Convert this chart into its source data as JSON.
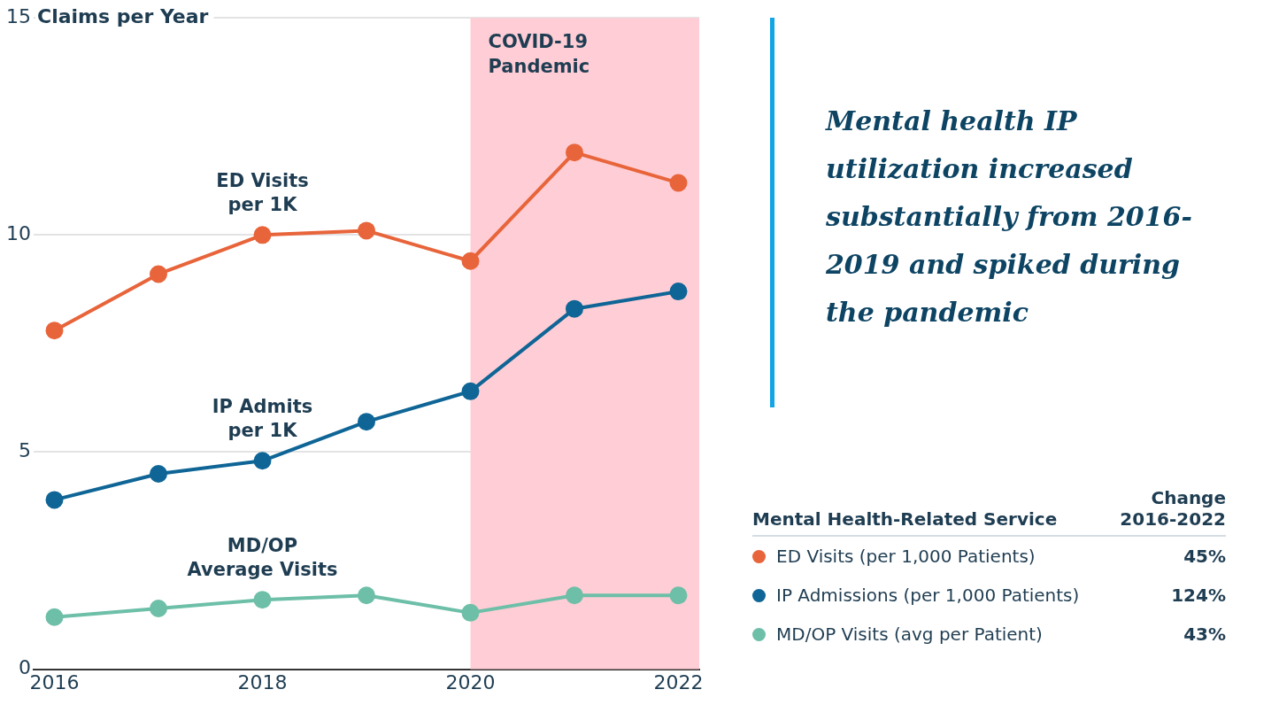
{
  "chart_data": {
    "type": "line",
    "ylabel": "Claims per Year",
    "subtitle": "Mental health IP utilization increased substantially from 2016-2019 and spiked during the pandemic",
    "x": [
      2016,
      2017,
      2018,
      2019,
      2020,
      2021,
      2022
    ],
    "series": [
      {
        "name": "ED Visits\nper 1K",
        "color": "#e8643a",
        "values": [
          7.8,
          9.1,
          10.0,
          10.1,
          9.4,
          11.9,
          11.2
        ]
      },
      {
        "name": "IP Admits\nper 1K",
        "color": "#0e6596",
        "values": [
          3.9,
          4.5,
          4.8,
          5.7,
          6.4,
          8.3,
          8.7
        ]
      },
      {
        "name": "MD/OP\nAverage Visits",
        "color": "#6dbfa8",
        "values": [
          1.2,
          1.4,
          1.6,
          1.7,
          1.3,
          1.7,
          1.7
        ]
      }
    ],
    "xlim": [
      2015.8,
      2022.2
    ],
    "xticks": [
      2016,
      2018,
      2020,
      2022
    ],
    "ylim": [
      0,
      15
    ],
    "yticks": [
      0,
      5,
      10,
      15
    ],
    "bands": [
      {
        "axis": "x",
        "from": 2020,
        "to": 2022.2,
        "label": "COVID-19\nPandemic",
        "color": "#ffcdd5"
      }
    ],
    "grid": "y",
    "legend": false,
    "marker": "circle",
    "line_style": "solid",
    "annotations": [
      "Mental Health-Related Service",
      "Change\n2016-2022",
      "ED Visits (per 1,000 Patients)",
      "45%",
      "IP Admissions (per 1,000 Patients)",
      "124%",
      "MD/OP Visits (avg per Patient)",
      "43%"
    ]
  }
}
